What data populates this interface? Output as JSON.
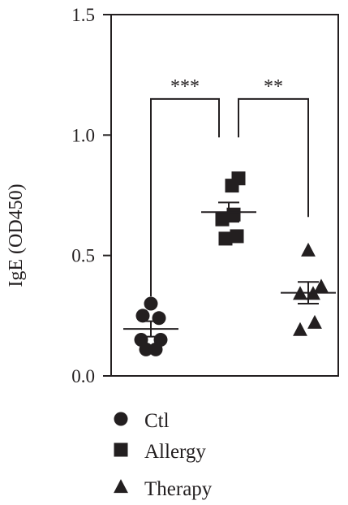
{
  "chart_data": {
    "type": "scatter",
    "ylabel": "IgE (OD450)",
    "ylim": [
      0,
      1.5
    ],
    "yticks": [
      "0.0",
      "0.5",
      "1.0",
      "1.5"
    ],
    "categories": [
      "Ctl",
      "Allergy",
      "Therapy"
    ],
    "series": [
      {
        "name": "Ctl",
        "marker": "circle",
        "points": [
          {
            "x": 0,
            "y": 0.3
          },
          {
            "x": -0.05,
            "y": 0.25
          },
          {
            "x": 0.05,
            "y": 0.24
          },
          {
            "x": -0.06,
            "y": 0.15
          },
          {
            "x": 0.06,
            "y": 0.15
          },
          {
            "x": -0.03,
            "y": 0.11
          },
          {
            "x": 0.03,
            "y": 0.11
          }
        ],
        "mean": 0.195,
        "sem": 0.032
      },
      {
        "name": "Allergy",
        "marker": "square",
        "points": [
          {
            "x": 0.06,
            "y": 0.82
          },
          {
            "x": 0.02,
            "y": 0.79
          },
          {
            "x": 0.03,
            "y": 0.67
          },
          {
            "x": -0.04,
            "y": 0.65
          },
          {
            "x": 0.05,
            "y": 0.58
          },
          {
            "x": -0.02,
            "y": 0.57
          }
        ],
        "mean": 0.68,
        "sem": 0.04
      },
      {
        "name": "Therapy",
        "marker": "triangle",
        "points": [
          {
            "x": 0,
            "y": 0.52
          },
          {
            "x": 0.08,
            "y": 0.37
          },
          {
            "x": -0.05,
            "y": 0.34
          },
          {
            "x": 0.03,
            "y": 0.34
          },
          {
            "x": 0.04,
            "y": 0.22
          },
          {
            "x": -0.05,
            "y": 0.19
          }
        ],
        "mean": 0.345,
        "sem": 0.045
      }
    ],
    "significance": [
      {
        "from": 0,
        "to": 1,
        "label": "***",
        "y": 1.15
      },
      {
        "from": 1,
        "to": 2,
        "label": "**",
        "y": 1.15
      }
    ],
    "legend": {
      "placement": "bottom",
      "entries": [
        {
          "label": "Ctl",
          "marker": "circle"
        },
        {
          "label": "Allergy",
          "marker": "square"
        },
        {
          "label": "Therapy",
          "marker": "triangle"
        }
      ]
    },
    "color": "#231f20"
  }
}
